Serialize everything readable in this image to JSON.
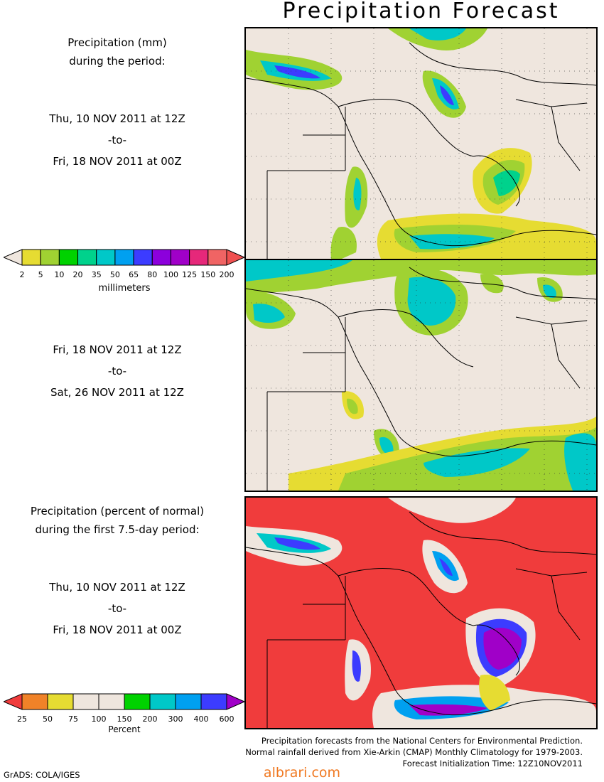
{
  "title": "Precipitation Forecast",
  "panel1": {
    "line1": "Precipitation (mm)",
    "line2": "during the period:",
    "start": "Thu, 10 NOV 2011 at 12Z",
    "to": "-to-",
    "end": "Fri, 18 NOV 2011 at 00Z"
  },
  "panel2": {
    "start": "Fri, 18 NOV 2011 at 12Z",
    "to": "-to-",
    "end": "Sat, 26 NOV 2011 at 12Z"
  },
  "panel3": {
    "line1": "Precipitation (percent of normal)",
    "line2": "during the first 7.5-day period:",
    "start": "Thu, 10 NOV 2011 at 12Z",
    "to": "-to-",
    "end": "Fri, 18 NOV 2011 at 00Z"
  },
  "colorbar_mm": {
    "ticks": [
      "2",
      "5",
      "10",
      "20",
      "35",
      "50",
      "65",
      "80",
      "100",
      "125",
      "150",
      "200"
    ],
    "colors": [
      "#efe6de",
      "#e6dc32",
      "#a0d232",
      "#00d200",
      "#00d28c",
      "#00c8c8",
      "#00a0f0",
      "#3c3cff",
      "#8c00dc",
      "#a000c8",
      "#e6287a",
      "#f06464",
      "#f05050"
    ],
    "units": "millimeters"
  },
  "colorbar_pct": {
    "ticks": [
      "25",
      "50",
      "75",
      "100",
      "150",
      "200",
      "300",
      "400",
      "600"
    ],
    "colors": [
      "#f03c3c",
      "#f08228",
      "#e6dc32",
      "#efe6de",
      "#efe6de",
      "#00d200",
      "#00c8c8",
      "#00a0f0",
      "#3c3cff",
      "#a000c8"
    ],
    "units": "Percent"
  },
  "footer": {
    "line1": "Precipitation forecasts from the National Centers for Environmental Prediction.",
    "line2": "Normal rainfall derived from Xie-Arkin (CMAP) Monthly Climatology for 1979-2003.",
    "line3": "Forecast Initialization Time: 12Z10NOV2011"
  },
  "grads_credit": "GrADS: COLA/IGES",
  "watermark": "albrari.com"
}
